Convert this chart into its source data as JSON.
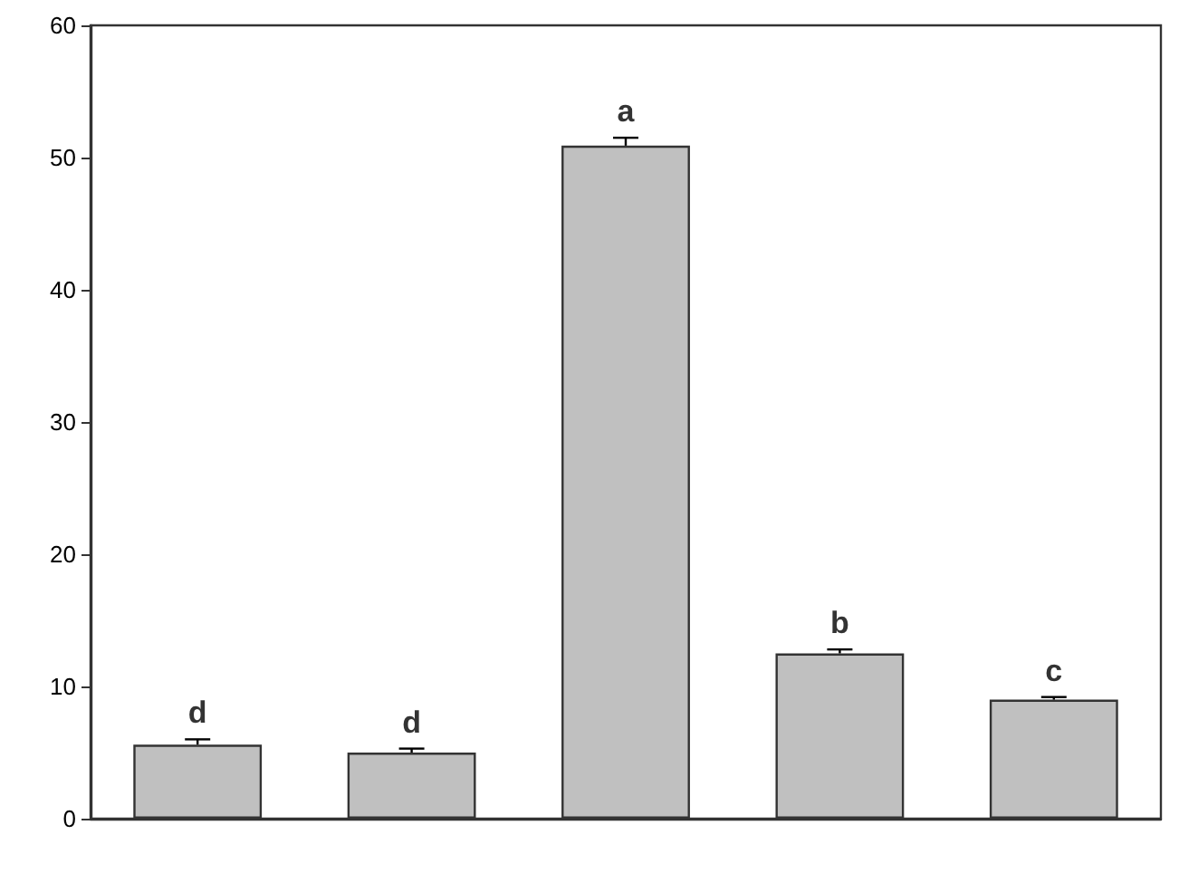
{
  "chart_data": {
    "type": "bar",
    "categories": [
      null,
      null,
      null,
      null,
      null
    ],
    "values": [
      5.6,
      5.0,
      50.9,
      12.5,
      9.0
    ],
    "errors": [
      0.4,
      0.3,
      0.6,
      0.3,
      0.2
    ],
    "color": "#c0c0c0",
    "ylim": [
      0,
      60
    ],
    "yticks": [
      0,
      10,
      20,
      30,
      40,
      50,
      60
    ],
    "annotations": [
      "d",
      "d",
      "a",
      "b",
      "c"
    ]
  }
}
